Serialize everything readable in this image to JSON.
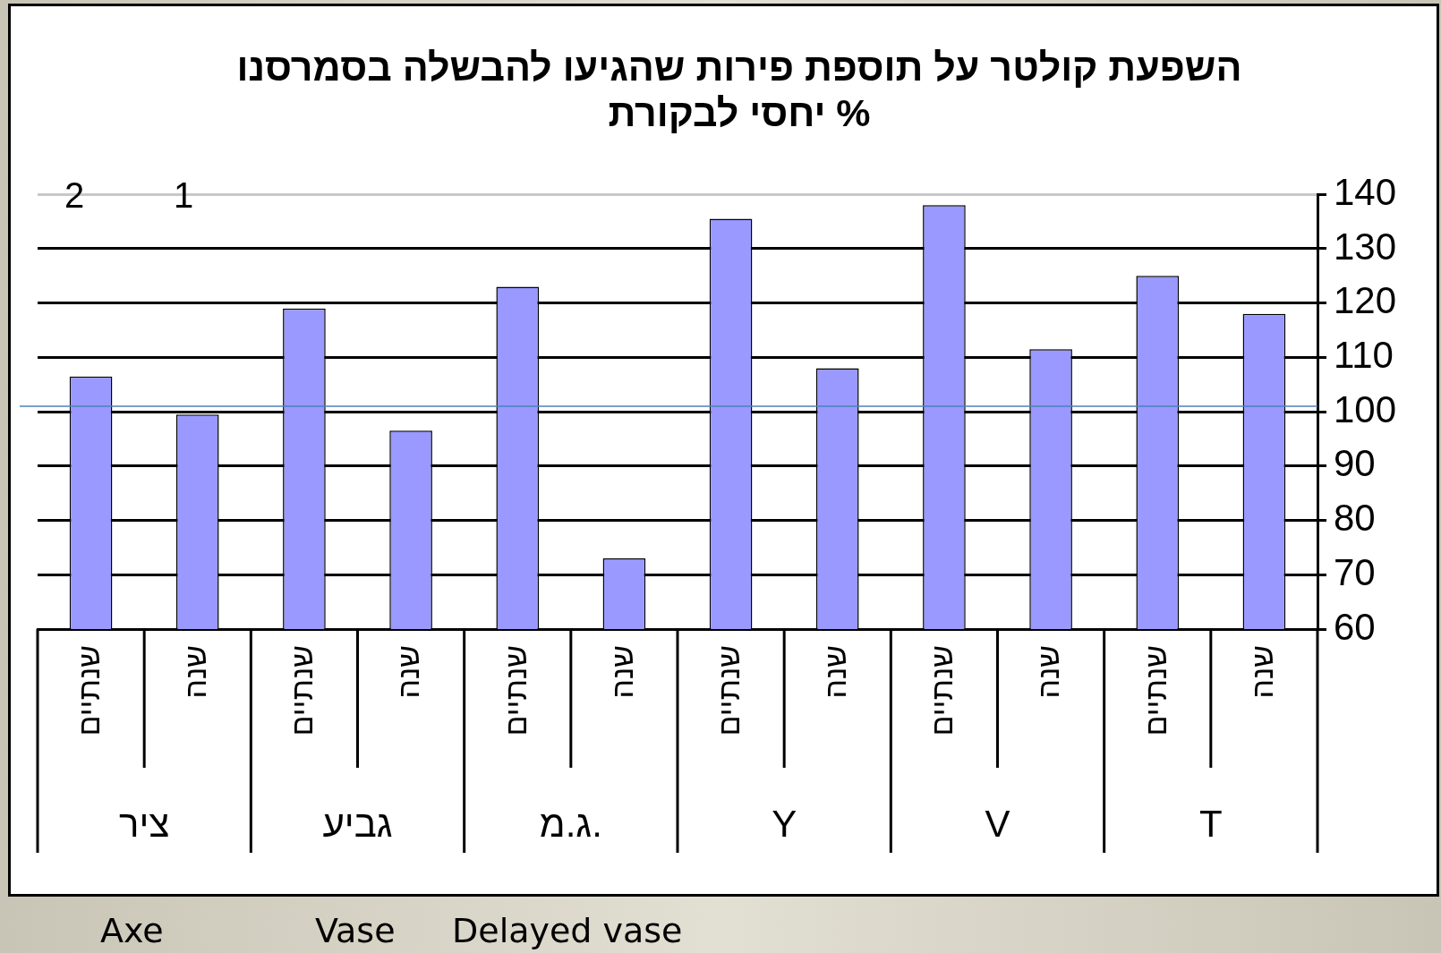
{
  "chart_data": {
    "type": "bar",
    "title": [
      "השפעת קולטר על תוספת פירות שהגיעו להבשלה בסמרסנו",
      "% יחסי לבקורת"
    ],
    "categories": [
      "שנתיים",
      "שנה",
      "שנתיים",
      "שנה",
      "שנתיים",
      "שנה",
      "שנתיים",
      "שנה",
      "שנתיים",
      "שנה",
      "שנתיים",
      "שנה"
    ],
    "values": [
      106.5,
      99.5,
      119,
      96.5,
      123,
      73,
      135.5,
      108,
      138,
      111.5,
      125,
      118
    ],
    "color": "#9999ff",
    "ylim": [
      60,
      140
    ],
    "yticks": [
      60,
      70,
      80,
      90,
      100,
      110,
      120,
      130,
      140
    ],
    "grid": "y",
    "legend": false,
    "ref_lines": [
      {
        "axis": "y",
        "value": 101,
        "color": "#4f81bd"
      }
    ],
    "annotations": [
      "ציר",
      "גביע",
      "ג.מ.",
      "Y",
      "V",
      "T",
      "2",
      "1",
      "Axe",
      "Vase",
      "Delayed vase"
    ]
  }
}
